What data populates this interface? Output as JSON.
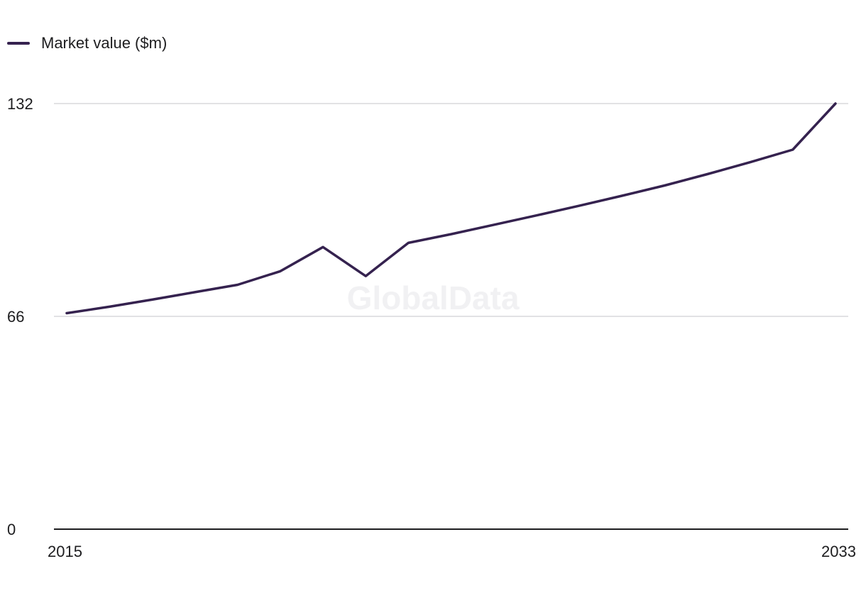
{
  "legend": {
    "label": "Market value ($m)"
  },
  "watermark": "GlobalData",
  "colors": {
    "series": "#35224f",
    "grid": "#d9d9dc",
    "axis": "#1d1d1f"
  },
  "chart_data": {
    "type": "line",
    "title": "",
    "xlabel": "",
    "ylabel": "",
    "x": [
      2015,
      2016,
      2017,
      2018,
      2019,
      2020,
      2021,
      2022,
      2023,
      2024,
      2025,
      2026,
      2027,
      2028,
      2029,
      2030,
      2031,
      2032,
      2033
    ],
    "series": [
      {
        "name": "Market value ($m)",
        "values": [
          67,
          69,
          71.2,
          73.5,
          75.8,
          80,
          87.5,
          78.5,
          88.8,
          91.5,
          94.4,
          97.3,
          100.3,
          103.4,
          106.6,
          110.1,
          113.8,
          117.7,
          132
        ]
      }
    ],
    "xlim": [
      2015,
      2033
    ],
    "ylim": [
      0,
      132
    ],
    "y_ticks": [
      "0",
      "66",
      "132"
    ],
    "x_tick_labels": [
      "2015",
      "2033"
    ],
    "grid": true,
    "legend_position": "top-left"
  }
}
